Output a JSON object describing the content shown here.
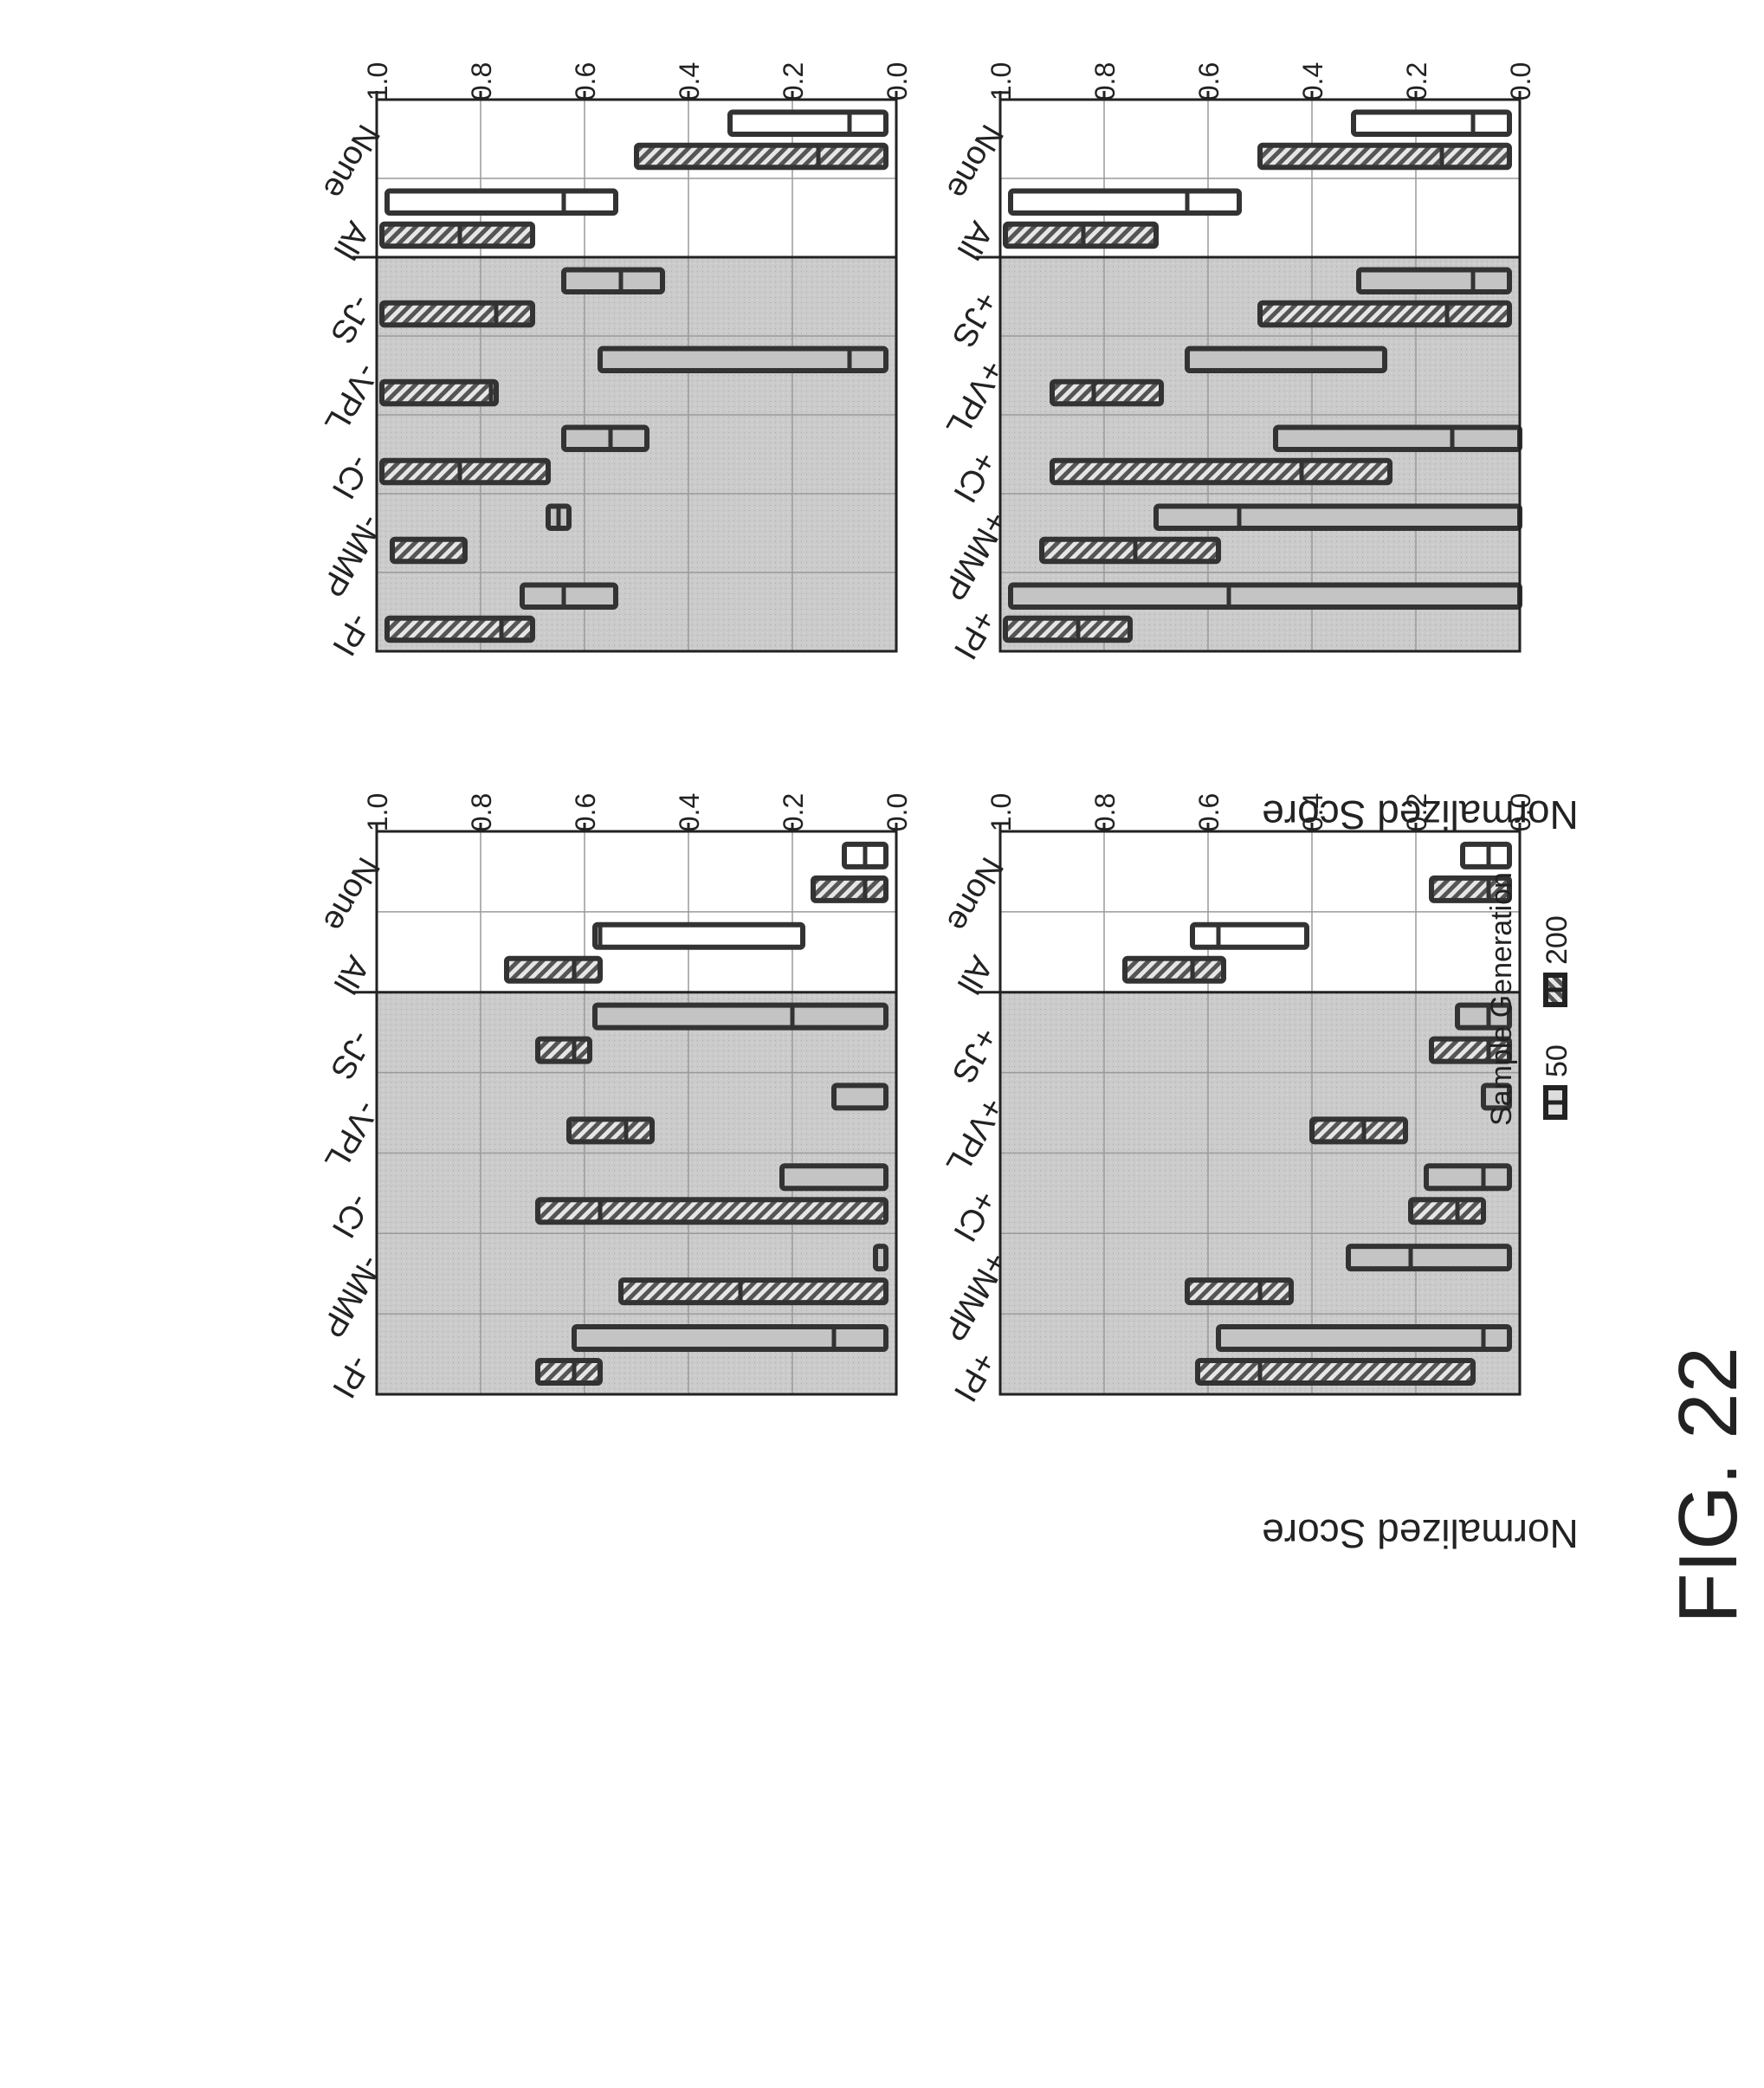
{
  "figure_label": "FIG. 22",
  "y_axis_label": "Normalized Score",
  "legend": {
    "title": "Sample Generation",
    "entries": [
      {
        "label": "50",
        "style": "plain"
      },
      {
        "label": "200",
        "style": "hatched"
      }
    ]
  },
  "colors": {
    "shaded_region": "#c8c8c8",
    "plain_fill": "#c4c4c4",
    "plain_fill_unshaded": "#ffffff",
    "hatch_fill": "#777777",
    "box_stroke": "#333333"
  },
  "chart_data": [
    {
      "type": "box",
      "panel": "left-top",
      "ylabel": "Normalized Score",
      "ylim": [
        0,
        1
      ],
      "yticks": [
        "0.0",
        "0.2",
        "0.4",
        "0.6",
        "0.8",
        "1.0"
      ],
      "unshaded_categories": 2,
      "categories": [
        "None",
        "All",
        "+JS",
        "+VPL",
        "+CI",
        "+MMP",
        "+PI"
      ],
      "series": [
        {
          "name": "50",
          "boxes": [
            [
              0.02,
              0.09,
              0.32
            ],
            [
              0.54,
              0.64,
              0.98
            ],
            [
              0.02,
              0.09,
              0.31
            ],
            [
              0.26,
              0.26,
              0.64
            ],
            [
              0.0,
              0.13,
              0.47
            ],
            [
              0.0,
              0.54,
              0.7
            ],
            [
              0.0,
              0.56,
              0.98
            ]
          ]
        },
        {
          "name": "200",
          "boxes": [
            [
              0.02,
              0.15,
              0.5
            ],
            [
              0.7,
              0.84,
              0.99
            ],
            [
              0.02,
              0.14,
              0.5
            ],
            [
              0.69,
              0.82,
              0.9
            ],
            [
              0.25,
              0.42,
              0.9
            ],
            [
              0.58,
              0.74,
              0.92
            ],
            [
              0.75,
              0.85,
              0.99
            ]
          ]
        }
      ]
    },
    {
      "type": "box",
      "panel": "right-top",
      "ylabel": "",
      "ylim": [
        0,
        1
      ],
      "yticks": [
        "0.0",
        "0.2",
        "0.4",
        "0.6",
        "0.8",
        "1.0"
      ],
      "unshaded_categories": 2,
      "categories": [
        "None",
        "All",
        "-JS",
        "-VPL",
        "-CI",
        "-MMP",
        "-PI"
      ],
      "series": [
        {
          "name": "50",
          "boxes": [
            [
              0.02,
              0.09,
              0.32
            ],
            [
              0.54,
              0.64,
              0.98
            ],
            [
              0.45,
              0.53,
              0.64
            ],
            [
              0.02,
              0.09,
              0.57
            ],
            [
              0.48,
              0.55,
              0.64
            ],
            [
              0.63,
              0.65,
              0.67
            ],
            [
              0.54,
              0.64,
              0.72
            ]
          ]
        },
        {
          "name": "200",
          "boxes": [
            [
              0.02,
              0.15,
              0.5
            ],
            [
              0.7,
              0.84,
              0.99
            ],
            [
              0.7,
              0.77,
              0.99
            ],
            [
              0.77,
              0.78,
              0.99
            ],
            [
              0.67,
              0.84,
              0.99
            ],
            [
              0.83,
              0.83,
              0.97
            ],
            [
              0.7,
              0.76,
              0.98
            ]
          ]
        }
      ]
    },
    {
      "type": "box",
      "panel": "left-bottom",
      "ylabel": "Normalized Score",
      "ylim": [
        0,
        1
      ],
      "yticks": [
        "0.0",
        "0.2",
        "0.4",
        "0.6",
        "0.8",
        "1.0"
      ],
      "unshaded_categories": 2,
      "categories": [
        "None",
        "All",
        "+JS",
        "+VPL",
        "+CI",
        "+MMP",
        "+PI"
      ],
      "series": [
        {
          "name": "50",
          "boxes": [
            [
              0.02,
              0.06,
              0.11
            ],
            [
              0.41,
              0.58,
              0.63
            ],
            [
              0.02,
              0.06,
              0.12
            ],
            [
              0.02,
              0.02,
              0.07
            ],
            [
              0.02,
              0.07,
              0.18
            ],
            [
              0.02,
              0.21,
              0.33
            ],
            [
              0.02,
              0.07,
              0.58
            ]
          ]
        },
        {
          "name": "200",
          "boxes": [
            [
              0.02,
              0.06,
              0.17
            ],
            [
              0.57,
              0.63,
              0.76
            ],
            [
              0.02,
              0.06,
              0.17
            ],
            [
              0.22,
              0.3,
              0.4
            ],
            [
              0.07,
              0.12,
              0.21
            ],
            [
              0.44,
              0.5,
              0.64
            ],
            [
              0.09,
              0.5,
              0.62
            ]
          ]
        }
      ]
    },
    {
      "type": "box",
      "panel": "right-bottom",
      "ylabel": "",
      "ylim": [
        0,
        1
      ],
      "yticks": [
        "0.0",
        "0.2",
        "0.4",
        "0.6",
        "0.8",
        "1.0"
      ],
      "unshaded_categories": 2,
      "categories": [
        "None",
        "All",
        "-JS",
        "-VPL",
        "-CI",
        "-MMP",
        "-PI"
      ],
      "series": [
        {
          "name": "50",
          "boxes": [
            [
              0.02,
              0.06,
              0.1
            ],
            [
              0.18,
              0.57,
              0.58
            ],
            [
              0.02,
              0.2,
              0.58
            ],
            [
              0.02,
              0.02,
              0.12
            ],
            [
              0.02,
              0.02,
              0.22
            ],
            [
              0.02,
              0.02,
              0.04
            ],
            [
              0.02,
              0.12,
              0.62
            ]
          ]
        },
        {
          "name": "200",
          "boxes": [
            [
              0.02,
              0.06,
              0.16
            ],
            [
              0.57,
              0.62,
              0.75
            ],
            [
              0.59,
              0.62,
              0.69
            ],
            [
              0.47,
              0.52,
              0.63
            ],
            [
              0.02,
              0.57,
              0.69
            ],
            [
              0.02,
              0.3,
              0.53
            ],
            [
              0.57,
              0.62,
              0.69
            ]
          ]
        }
      ]
    }
  ]
}
